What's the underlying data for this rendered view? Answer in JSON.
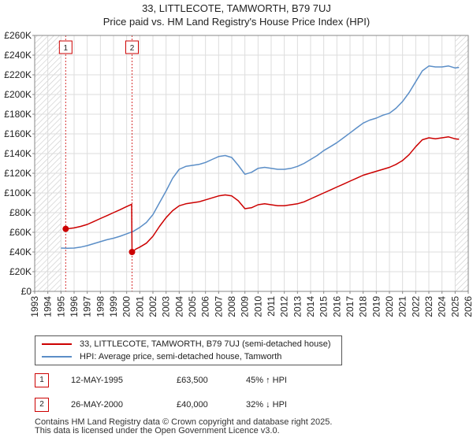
{
  "chart_data": {
    "type": "line",
    "title": "33, LITTLECOTE, TAMWORTH, B79 7UJ",
    "subtitle": "Price paid vs. HM Land Registry's House Price Index (HPI)",
    "xlabel": "",
    "ylabel": "",
    "xlim": [
      1993,
      2026
    ],
    "ylim": [
      0,
      260000
    ],
    "x_ticks": [
      "1993",
      "1994",
      "1995",
      "1996",
      "1997",
      "1998",
      "1999",
      "2000",
      "2001",
      "2002",
      "2003",
      "2004",
      "2005",
      "2006",
      "2007",
      "2008",
      "2009",
      "2010",
      "2011",
      "2012",
      "2013",
      "2014",
      "2015",
      "2016",
      "2017",
      "2018",
      "2019",
      "2020",
      "2021",
      "2022",
      "2023",
      "2024",
      "2025",
      "2026"
    ],
    "y_ticks": [
      {
        "value": 0,
        "label": "£0"
      },
      {
        "value": 20000,
        "label": "£20K"
      },
      {
        "value": 40000,
        "label": "£40K"
      },
      {
        "value": 60000,
        "label": "£60K"
      },
      {
        "value": 80000,
        "label": "£80K"
      },
      {
        "value": 100000,
        "label": "£100K"
      },
      {
        "value": 120000,
        "label": "£120K"
      },
      {
        "value": 140000,
        "label": "£140K"
      },
      {
        "value": 160000,
        "label": "£160K"
      },
      {
        "value": 180000,
        "label": "£180K"
      },
      {
        "value": 200000,
        "label": "£200K"
      },
      {
        "value": 220000,
        "label": "£220K"
      },
      {
        "value": 240000,
        "label": "£240K"
      },
      {
        "value": 260000,
        "label": "£260K"
      }
    ],
    "grid": true,
    "hatched_ranges": [
      [
        1993,
        1995
      ],
      [
        2025,
        2026
      ]
    ],
    "series": [
      {
        "name": "33, LITTLECOTE, TAMWORTH, B79 7UJ (semi-detached house)",
        "color": "#cc0000",
        "points": [
          [
            1995.36,
            63500
          ],
          [
            1995.6,
            63800
          ],
          [
            1996.0,
            64500
          ],
          [
            1996.5,
            66000
          ],
          [
            1997.0,
            68000
          ],
          [
            1997.5,
            71000
          ],
          [
            1998.0,
            74000
          ],
          [
            1998.5,
            77000
          ],
          [
            1999.0,
            80000
          ],
          [
            1999.5,
            83000
          ],
          [
            1999.9,
            85500
          ],
          [
            2000.38,
            88500
          ],
          [
            2000.41,
            40000
          ],
          [
            2000.7,
            43000
          ],
          [
            2001.0,
            45000
          ],
          [
            2001.5,
            49000
          ],
          [
            2002.0,
            56000
          ],
          [
            2002.5,
            66000
          ],
          [
            2003.0,
            75000
          ],
          [
            2003.5,
            82000
          ],
          [
            2004.0,
            87000
          ],
          [
            2004.5,
            89000
          ],
          [
            2005.0,
            90000
          ],
          [
            2005.5,
            91000
          ],
          [
            2006.0,
            93000
          ],
          [
            2006.5,
            95000
          ],
          [
            2007.0,
            97000
          ],
          [
            2007.5,
            98000
          ],
          [
            2008.0,
            97000
          ],
          [
            2008.5,
            92000
          ],
          [
            2009.0,
            84000
          ],
          [
            2009.5,
            85000
          ],
          [
            2010.0,
            88000
          ],
          [
            2010.5,
            89000
          ],
          [
            2011.0,
            88000
          ],
          [
            2011.5,
            87000
          ],
          [
            2012.0,
            87000
          ],
          [
            2012.5,
            88000
          ],
          [
            2013.0,
            89000
          ],
          [
            2013.5,
            91000
          ],
          [
            2014.0,
            94000
          ],
          [
            2014.5,
            97000
          ],
          [
            2015.0,
            100000
          ],
          [
            2015.5,
            103000
          ],
          [
            2016.0,
            106000
          ],
          [
            2016.5,
            109000
          ],
          [
            2017.0,
            112000
          ],
          [
            2017.5,
            115000
          ],
          [
            2018.0,
            118000
          ],
          [
            2018.5,
            120000
          ],
          [
            2019.0,
            122000
          ],
          [
            2019.5,
            124000
          ],
          [
            2020.0,
            126000
          ],
          [
            2020.5,
            129000
          ],
          [
            2021.0,
            133000
          ],
          [
            2021.5,
            139000
          ],
          [
            2022.0,
            147000
          ],
          [
            2022.5,
            154000
          ],
          [
            2023.0,
            156000
          ],
          [
            2023.5,
            155000
          ],
          [
            2024.0,
            156000
          ],
          [
            2024.5,
            157000
          ],
          [
            2025.0,
            155000
          ],
          [
            2025.3,
            154500
          ]
        ]
      },
      {
        "name": "HPI: Average price, semi-detached house, Tamworth",
        "color": "#5b8ec7",
        "points": [
          [
            1995.0,
            44000
          ],
          [
            1995.5,
            43800
          ],
          [
            1996.0,
            44000
          ],
          [
            1996.5,
            45000
          ],
          [
            1997.0,
            46500
          ],
          [
            1997.5,
            48500
          ],
          [
            1998.0,
            50500
          ],
          [
            1998.5,
            52500
          ],
          [
            1999.0,
            54000
          ],
          [
            1999.5,
            56000
          ],
          [
            2000.0,
            58500
          ],
          [
            2000.5,
            61000
          ],
          [
            2001.0,
            65000
          ],
          [
            2001.5,
            70000
          ],
          [
            2002.0,
            78000
          ],
          [
            2002.5,
            90000
          ],
          [
            2003.0,
            102000
          ],
          [
            2003.5,
            115000
          ],
          [
            2004.0,
            124000
          ],
          [
            2004.5,
            127000
          ],
          [
            2005.0,
            128000
          ],
          [
            2005.5,
            129000
          ],
          [
            2006.0,
            131000
          ],
          [
            2006.5,
            134000
          ],
          [
            2007.0,
            137000
          ],
          [
            2007.5,
            138000
          ],
          [
            2008.0,
            136000
          ],
          [
            2008.5,
            128000
          ],
          [
            2009.0,
            119000
          ],
          [
            2009.5,
            121000
          ],
          [
            2010.0,
            125000
          ],
          [
            2010.5,
            126000
          ],
          [
            2011.0,
            125000
          ],
          [
            2011.5,
            124000
          ],
          [
            2012.0,
            124000
          ],
          [
            2012.5,
            125000
          ],
          [
            2013.0,
            127000
          ],
          [
            2013.5,
            130000
          ],
          [
            2014.0,
            134000
          ],
          [
            2014.5,
            138000
          ],
          [
            2015.0,
            143000
          ],
          [
            2015.5,
            147000
          ],
          [
            2016.0,
            151000
          ],
          [
            2016.5,
            156000
          ],
          [
            2017.0,
            161000
          ],
          [
            2017.5,
            166000
          ],
          [
            2018.0,
            171000
          ],
          [
            2018.5,
            174000
          ],
          [
            2019.0,
            176000
          ],
          [
            2019.5,
            179000
          ],
          [
            2020.0,
            181000
          ],
          [
            2020.5,
            186000
          ],
          [
            2021.0,
            193000
          ],
          [
            2021.5,
            202000
          ],
          [
            2022.0,
            213000
          ],
          [
            2022.5,
            224000
          ],
          [
            2023.0,
            229000
          ],
          [
            2023.5,
            228000
          ],
          [
            2024.0,
            228000
          ],
          [
            2024.5,
            229000
          ],
          [
            2025.0,
            227000
          ],
          [
            2025.3,
            227500
          ]
        ]
      }
    ],
    "sale_markers": [
      {
        "label": "1",
        "x": 1995.36,
        "price": 63500
      },
      {
        "label": "2",
        "x": 2000.41,
        "price": 40000
      }
    ]
  },
  "legend": {
    "entry_1": "33, LITTLECOTE, TAMWORTH, B79 7UJ (semi-detached house)",
    "entry_2": "HPI: Average price, semi-detached house, Tamworth"
  },
  "sales": [
    {
      "label": "1",
      "date": "12-MAY-1995",
      "price": "£63,500",
      "hpi": "45% ↑ HPI"
    },
    {
      "label": "2",
      "date": "26-MAY-2000",
      "price": "£40,000",
      "hpi": "32% ↓ HPI"
    }
  ],
  "footer": {
    "line_1": "Contains HM Land Registry data © Crown copyright and database right 2025.",
    "line_2": "This data is licensed under the Open Government Licence v3.0."
  },
  "colors": {
    "property_line": "#cc0000",
    "hpi_line": "#5b8ec7",
    "grid": "#dddddd",
    "hatch": "#cccccc"
  }
}
